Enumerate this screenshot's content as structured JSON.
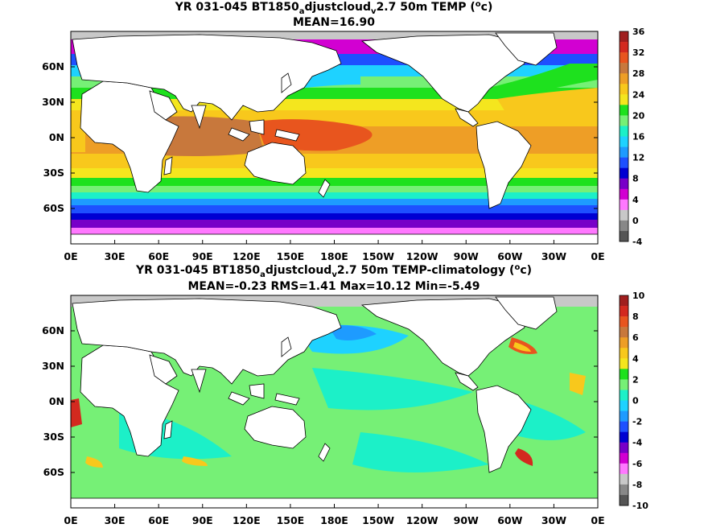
{
  "panels": [
    {
      "title_prefix": "YR 031-045 BT1850",
      "title_sub1": "a",
      "title_mid": "djustcloud",
      "title_sub2": "v",
      "title_suffix": "2.7 50m TEMP (",
      "title_sup": "o",
      "title_end": "c)",
      "stats": "MEAN=16.90",
      "colorbar_labels": [
        "36",
        "32",
        "28",
        "24",
        "20",
        "16",
        "12",
        "8",
        "4",
        "0",
        "-4"
      ],
      "colorbar_colors": [
        "#a01e1e",
        "#d3291f",
        "#e8551e",
        "#c8783c",
        "#ee9e26",
        "#f8c81c",
        "#f4e61e",
        "#1ee11e",
        "#76f076",
        "#1cf0c8",
        "#1ed2ff",
        "#1e9bff",
        "#1e50ff",
        "#0000d2",
        "#7800c8",
        "#d200d2",
        "#ff78ff",
        "#c8c8c8",
        "#888888",
        "#555555"
      ],
      "lat_labels": [
        "60N",
        "30N",
        "0N",
        "30S",
        "60S"
      ],
      "lon_labels": [
        "0E",
        "30E",
        "60E",
        "90E",
        "120E",
        "150E",
        "180E",
        "150W",
        "120W",
        "90W",
        "60W",
        "30W",
        "0E"
      ]
    },
    {
      "title_prefix": "YR 031-045 BT1850",
      "title_sub1": "a",
      "title_mid": "djustcloud",
      "title_sub2": "v",
      "title_suffix": "2.7 50m TEMP-climatology (",
      "title_sup": "o",
      "title_end": "c)",
      "stats": "MEAN=-0.23   RMS=1.41   Max=10.12   Min=-5.49",
      "colorbar_labels": [
        "10",
        "8",
        "6",
        "4",
        "2",
        "0",
        "-2",
        "-4",
        "-6",
        "-8",
        "-10"
      ],
      "colorbar_colors": [
        "#a01e1e",
        "#d3291f",
        "#e8551e",
        "#c8783c",
        "#ee9e26",
        "#f8c81c",
        "#f4e61e",
        "#1ee11e",
        "#76f076",
        "#1cf0c8",
        "#1ed2ff",
        "#1e9bff",
        "#1e50ff",
        "#0000d2",
        "#7800c8",
        "#d200d2",
        "#ff78ff",
        "#c8c8c8",
        "#888888",
        "#555555"
      ],
      "lat_labels": [
        "60N",
        "30N",
        "0N",
        "30S",
        "60S"
      ],
      "lon_labels": [
        "0E",
        "30E",
        "60E",
        "90E",
        "120E",
        "150E",
        "180E",
        "150W",
        "120W",
        "90W",
        "60W",
        "30W",
        "0E"
      ]
    }
  ]
}
